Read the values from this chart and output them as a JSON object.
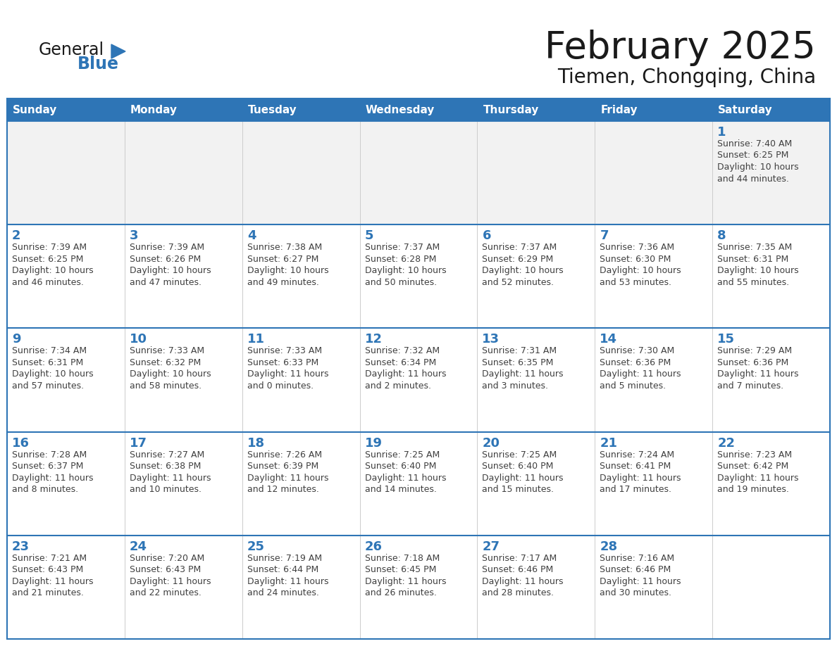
{
  "title": "February 2025",
  "subtitle": "Tiemen, Chongqing, China",
  "header_bg": "#2E75B6",
  "header_text_color": "#FFFFFF",
  "cell_bg_white": "#FFFFFF",
  "cell_bg_gray": "#F2F2F2",
  "border_color": "#2E75B6",
  "row_divider_color": "#2E75B6",
  "day_number_color": "#2E75B6",
  "cell_text_color": "#404040",
  "days_of_week": [
    "Sunday",
    "Monday",
    "Tuesday",
    "Wednesday",
    "Thursday",
    "Friday",
    "Saturday"
  ],
  "weeks": [
    [
      {
        "day": null,
        "text": ""
      },
      {
        "day": null,
        "text": ""
      },
      {
        "day": null,
        "text": ""
      },
      {
        "day": null,
        "text": ""
      },
      {
        "day": null,
        "text": ""
      },
      {
        "day": null,
        "text": ""
      },
      {
        "day": 1,
        "text": "Sunrise: 7:40 AM\nSunset: 6:25 PM\nDaylight: 10 hours\nand 44 minutes."
      }
    ],
    [
      {
        "day": 2,
        "text": "Sunrise: 7:39 AM\nSunset: 6:25 PM\nDaylight: 10 hours\nand 46 minutes."
      },
      {
        "day": 3,
        "text": "Sunrise: 7:39 AM\nSunset: 6:26 PM\nDaylight: 10 hours\nand 47 minutes."
      },
      {
        "day": 4,
        "text": "Sunrise: 7:38 AM\nSunset: 6:27 PM\nDaylight: 10 hours\nand 49 minutes."
      },
      {
        "day": 5,
        "text": "Sunrise: 7:37 AM\nSunset: 6:28 PM\nDaylight: 10 hours\nand 50 minutes."
      },
      {
        "day": 6,
        "text": "Sunrise: 7:37 AM\nSunset: 6:29 PM\nDaylight: 10 hours\nand 52 minutes."
      },
      {
        "day": 7,
        "text": "Sunrise: 7:36 AM\nSunset: 6:30 PM\nDaylight: 10 hours\nand 53 minutes."
      },
      {
        "day": 8,
        "text": "Sunrise: 7:35 AM\nSunset: 6:31 PM\nDaylight: 10 hours\nand 55 minutes."
      }
    ],
    [
      {
        "day": 9,
        "text": "Sunrise: 7:34 AM\nSunset: 6:31 PM\nDaylight: 10 hours\nand 57 minutes."
      },
      {
        "day": 10,
        "text": "Sunrise: 7:33 AM\nSunset: 6:32 PM\nDaylight: 10 hours\nand 58 minutes."
      },
      {
        "day": 11,
        "text": "Sunrise: 7:33 AM\nSunset: 6:33 PM\nDaylight: 11 hours\nand 0 minutes."
      },
      {
        "day": 12,
        "text": "Sunrise: 7:32 AM\nSunset: 6:34 PM\nDaylight: 11 hours\nand 2 minutes."
      },
      {
        "day": 13,
        "text": "Sunrise: 7:31 AM\nSunset: 6:35 PM\nDaylight: 11 hours\nand 3 minutes."
      },
      {
        "day": 14,
        "text": "Sunrise: 7:30 AM\nSunset: 6:36 PM\nDaylight: 11 hours\nand 5 minutes."
      },
      {
        "day": 15,
        "text": "Sunrise: 7:29 AM\nSunset: 6:36 PM\nDaylight: 11 hours\nand 7 minutes."
      }
    ],
    [
      {
        "day": 16,
        "text": "Sunrise: 7:28 AM\nSunset: 6:37 PM\nDaylight: 11 hours\nand 8 minutes."
      },
      {
        "day": 17,
        "text": "Sunrise: 7:27 AM\nSunset: 6:38 PM\nDaylight: 11 hours\nand 10 minutes."
      },
      {
        "day": 18,
        "text": "Sunrise: 7:26 AM\nSunset: 6:39 PM\nDaylight: 11 hours\nand 12 minutes."
      },
      {
        "day": 19,
        "text": "Sunrise: 7:25 AM\nSunset: 6:40 PM\nDaylight: 11 hours\nand 14 minutes."
      },
      {
        "day": 20,
        "text": "Sunrise: 7:25 AM\nSunset: 6:40 PM\nDaylight: 11 hours\nand 15 minutes."
      },
      {
        "day": 21,
        "text": "Sunrise: 7:24 AM\nSunset: 6:41 PM\nDaylight: 11 hours\nand 17 minutes."
      },
      {
        "day": 22,
        "text": "Sunrise: 7:23 AM\nSunset: 6:42 PM\nDaylight: 11 hours\nand 19 minutes."
      }
    ],
    [
      {
        "day": 23,
        "text": "Sunrise: 7:21 AM\nSunset: 6:43 PM\nDaylight: 11 hours\nand 21 minutes."
      },
      {
        "day": 24,
        "text": "Sunrise: 7:20 AM\nSunset: 6:43 PM\nDaylight: 11 hours\nand 22 minutes."
      },
      {
        "day": 25,
        "text": "Sunrise: 7:19 AM\nSunset: 6:44 PM\nDaylight: 11 hours\nand 24 minutes."
      },
      {
        "day": 26,
        "text": "Sunrise: 7:18 AM\nSunset: 6:45 PM\nDaylight: 11 hours\nand 26 minutes."
      },
      {
        "day": 27,
        "text": "Sunrise: 7:17 AM\nSunset: 6:46 PM\nDaylight: 11 hours\nand 28 minutes."
      },
      {
        "day": 28,
        "text": "Sunrise: 7:16 AM\nSunset: 6:46 PM\nDaylight: 11 hours\nand 30 minutes."
      },
      {
        "day": null,
        "text": ""
      }
    ]
  ],
  "logo_text_general": "General",
  "logo_text_blue": "Blue",
  "logo_color_general": "#1a1a1a",
  "logo_color_blue": "#2E75B6",
  "logo_triangle_color": "#2E75B6",
  "title_fontsize": 38,
  "subtitle_fontsize": 20,
  "header_fontsize": 11,
  "day_number_fontsize": 13,
  "cell_text_fontsize": 9
}
